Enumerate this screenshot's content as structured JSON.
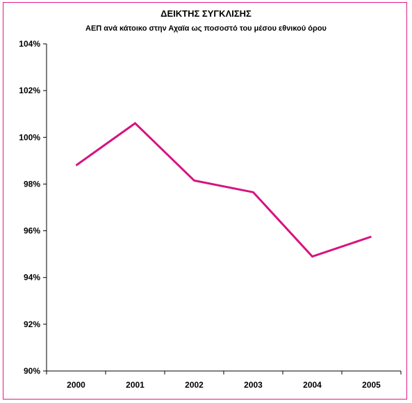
{
  "chart_data": {
    "type": "line",
    "title": "ΔΕΙΚΤΗΣ ΣΥΓΚΛΙΣΗΣ",
    "subtitle": "ΑΕΠ ανά κάτοικο στην Αχαϊα ως ποσοστό του μέσου εθνικού όρου",
    "xlabel": "",
    "ylabel": "",
    "categories": [
      "2000",
      "2001",
      "2002",
      "2003",
      "2004",
      "2005"
    ],
    "series": [
      {
        "values": [
          98.8,
          100.6,
          98.15,
          97.65,
          94.9,
          95.75
        ],
        "color": "#d6137f"
      }
    ],
    "ylim": [
      90,
      104
    ],
    "yticks": [
      "90%",
      "92%",
      "94%",
      "96%",
      "98%",
      "100%",
      "102%",
      "104%"
    ],
    "ytick_values": [
      90,
      92,
      94,
      96,
      98,
      100,
      102,
      104
    ],
    "grid": false,
    "legend": "none",
    "frame_color": "#e01a84"
  }
}
